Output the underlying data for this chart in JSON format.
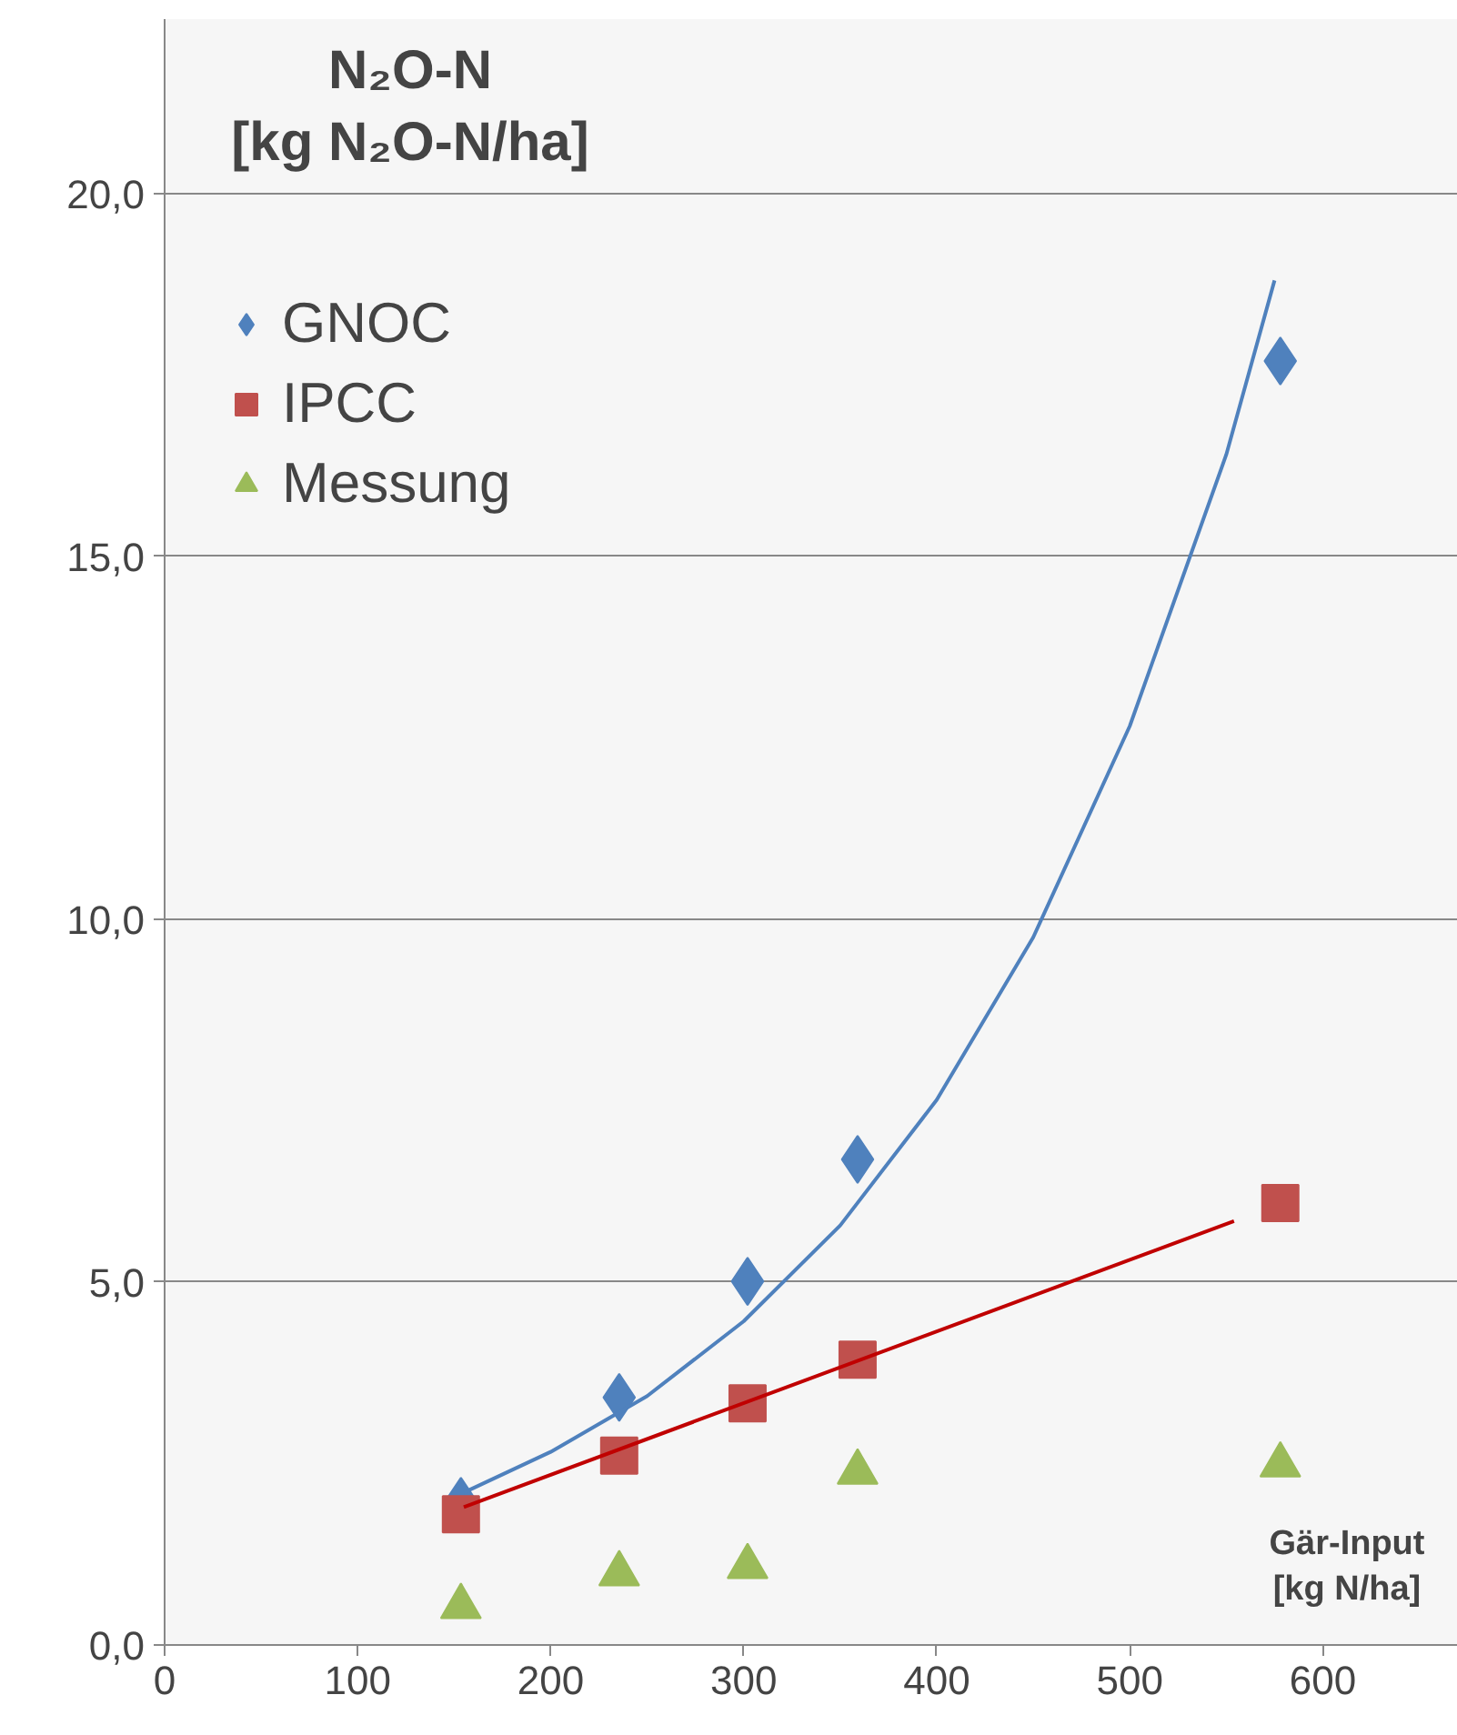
{
  "chart_data": {
    "type": "scatter",
    "ylabel": "N₂O-N\n[kg N₂O-N/ha]",
    "xlabel": "Gär-Input\n[kg N/ha]",
    "xlim": [
      0,
      670
    ],
    "ylim": [
      0,
      22.4
    ],
    "xticks": [
      0,
      100,
      200,
      300,
      400,
      500,
      600
    ],
    "yticks": [
      {
        "value": 0,
        "label": "0,0"
      },
      {
        "value": 5,
        "label": "5,0"
      },
      {
        "value": 10,
        "label": "10,0"
      },
      {
        "value": 15,
        "label": "15,0"
      },
      {
        "value": 20,
        "label": "20,0"
      }
    ],
    "grid": "y",
    "legend": "top left",
    "x": [
      153.5,
      235.5,
      302,
      359,
      578
    ],
    "series": [
      {
        "name": "GNOC",
        "color": "#4f81bd",
        "marker": "diamond",
        "values": [
          1.98,
          3.41,
          5.01,
          6.69,
          17.69
        ]
      },
      {
        "name": "IPCC",
        "color": "#c0504d",
        "marker": "square",
        "values": [
          1.8,
          2.61,
          3.33,
          3.93,
          6.09
        ]
      },
      {
        "name": "Messung",
        "color": "#9bbb59",
        "marker": "triangle",
        "values": [
          0.53,
          0.98,
          1.08,
          2.38,
          2.48
        ]
      },
      {
        "type": "line",
        "color": "#4f81bd",
        "x": [
          155,
          200,
          250,
          300,
          350,
          400,
          450,
          500,
          550,
          575
        ],
        "values": [
          2.1,
          2.66,
          3.43,
          4.46,
          5.78,
          7.51,
          9.75,
          12.66,
          16.4,
          18.8
        ]
      },
      {
        "type": "line",
        "color": "#c00000",
        "x": [
          155,
          554
        ],
        "values": [
          1.9,
          5.84
        ]
      }
    ]
  }
}
